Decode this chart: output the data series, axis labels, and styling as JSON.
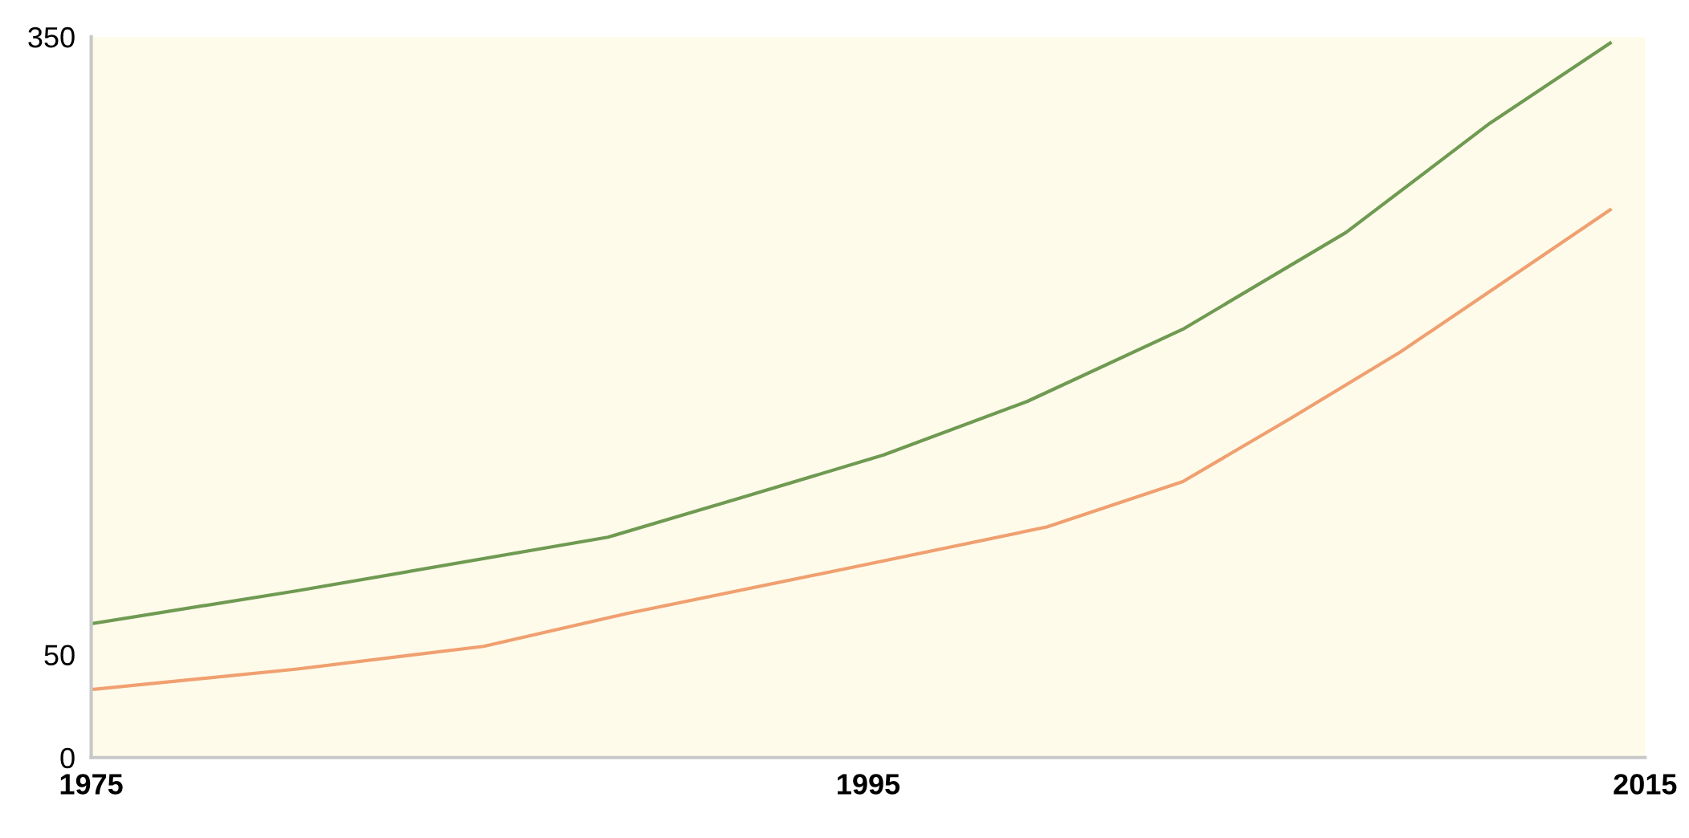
{
  "chart_data": {
    "type": "line",
    "series": [
      {
        "color": "#6f9a52",
        "x": [
          1975,
          1980.3,
          1988.3,
          1991.7,
          1995.4,
          1999.1,
          2003.1,
          2007.3,
          2011,
          2014.1
        ],
        "values": [
          65,
          81,
          107,
          126,
          147,
          173,
          208,
          255,
          308,
          347
        ]
      },
      {
        "color": "#f0a070",
        "x": [
          1975,
          1980.3,
          1985.1,
          1988.8,
          1994.5,
          1999.6,
          2003.1,
          2005.9,
          2008.7,
          2011.6,
          2014.1
        ],
        "values": [
          33,
          43,
          54,
          70,
          92,
          112,
          134,
          165,
          197,
          234,
          266
        ]
      }
    ],
    "xlim": [
      1975,
      2015
    ],
    "xticks": [
      1975,
      1995,
      2015
    ],
    "ylim": [
      0,
      350
    ],
    "yticks": [
      0,
      50,
      350
    ],
    "grid": false,
    "legend": false,
    "marker": "none",
    "line_style": "solid"
  }
}
